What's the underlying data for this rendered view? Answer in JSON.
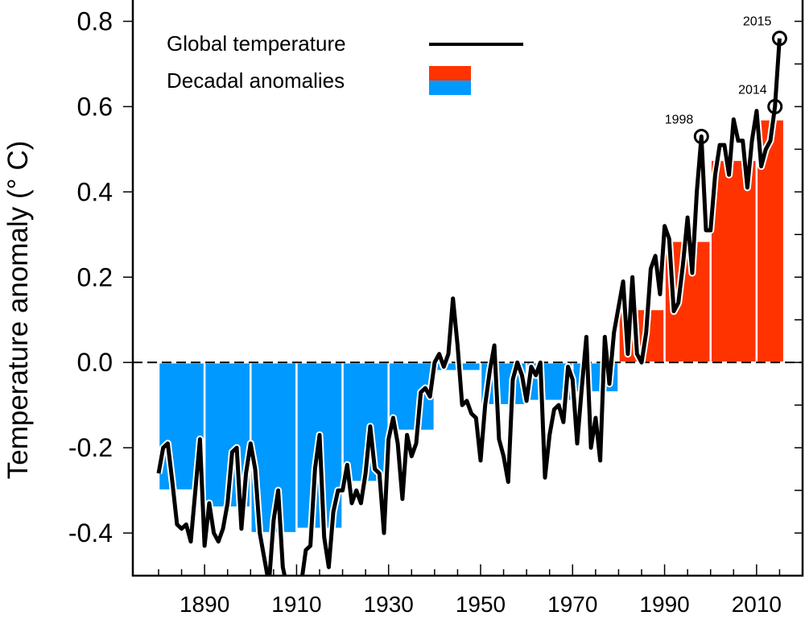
{
  "chart_data": {
    "type": "bar+line",
    "title": "",
    "xlabel": "",
    "ylabel": "Temperature anomaly (° C)",
    "xlim": [
      1874.4,
      2020
    ],
    "ylim": [
      -0.5,
      0.85
    ],
    "x_ticks": [
      1890,
      1910,
      1930,
      1950,
      1970,
      1990,
      2010
    ],
    "x_tick_labels": [
      "1890",
      "1910",
      "1930",
      "1950",
      "1970",
      "1990",
      "2010"
    ],
    "y_ticks": [
      -0.4,
      -0.2,
      0.0,
      0.2,
      0.4,
      0.6,
      0.8
    ],
    "y_tick_labels": [
      "-0.4",
      "-0.2",
      "0.0",
      "0.2",
      "0.4",
      "0.6",
      "0.8"
    ],
    "grid": false,
    "zero_line": "dashed",
    "legend": {
      "placement": "top-left",
      "entries": [
        {
          "label": "Global temperature",
          "type": "line",
          "color": "#000000"
        },
        {
          "label": "Decadal anomalies",
          "type": "box",
          "colors": [
            "#ff3300",
            "#0099ff"
          ]
        }
      ]
    },
    "colors": {
      "positive": "#ff3300",
      "negative": "#0099ff",
      "line": "#000000"
    },
    "decadal": {
      "decades": [
        1880,
        1890,
        1900,
        1910,
        1920,
        1930,
        1940,
        1950,
        1960,
        1970,
        1980,
        1990,
        2000,
        2010
      ],
      "values": [
        -0.3,
        -0.34,
        -0.4,
        -0.39,
        -0.28,
        -0.16,
        -0.02,
        -0.1,
        -0.09,
        -0.07,
        0.125,
        0.285,
        0.475,
        0.57
      ]
    },
    "annual": {
      "start_year": 1880,
      "values": [
        -0.26,
        -0.2,
        -0.19,
        -0.28,
        -0.38,
        -0.39,
        -0.38,
        -0.42,
        -0.3,
        -0.18,
        -0.43,
        -0.33,
        -0.4,
        -0.42,
        -0.39,
        -0.33,
        -0.21,
        -0.2,
        -0.39,
        -0.26,
        -0.19,
        -0.25,
        -0.4,
        -0.46,
        -0.52,
        -0.37,
        -0.3,
        -0.48,
        -0.53,
        -0.56,
        -0.55,
        -0.52,
        -0.44,
        -0.43,
        -0.25,
        -0.17,
        -0.41,
        -0.48,
        -0.35,
        -0.3,
        -0.3,
        -0.24,
        -0.33,
        -0.3,
        -0.33,
        -0.26,
        -0.15,
        -0.25,
        -0.26,
        -0.4,
        -0.18,
        -0.13,
        -0.19,
        -0.32,
        -0.17,
        -0.22,
        -0.19,
        -0.07,
        -0.06,
        -0.08,
        0.0,
        0.02,
        -0.01,
        0.02,
        0.15,
        0.04,
        -0.1,
        -0.09,
        -0.12,
        -0.13,
        -0.23,
        -0.1,
        -0.02,
        0.04,
        -0.18,
        -0.22,
        -0.28,
        -0.04,
        0.0,
        -0.03,
        -0.09,
        -0.01,
        -0.03,
        0.0,
        -0.27,
        -0.17,
        -0.11,
        -0.1,
        -0.14,
        -0.01,
        -0.04,
        -0.19,
        -0.06,
        0.06,
        -0.2,
        -0.13,
        -0.23,
        0.06,
        -0.05,
        0.07,
        0.13,
        0.19,
        0.02,
        0.2,
        0.02,
        0.0,
        0.07,
        0.22,
        0.25,
        0.16,
        0.32,
        0.29,
        0.12,
        0.14,
        0.23,
        0.34,
        0.21,
        0.4,
        0.53,
        0.31,
        0.31,
        0.44,
        0.51,
        0.51,
        0.44,
        0.57,
        0.52,
        0.52,
        0.41,
        0.52,
        0.59,
        0.46,
        0.5,
        0.52,
        0.6,
        0.76
      ]
    },
    "annotations": [
      {
        "label": "1998",
        "year": 1998,
        "value": 0.53
      },
      {
        "label": "2014",
        "year": 2014,
        "value": 0.6
      },
      {
        "label": "2015",
        "year": 2015,
        "value": 0.76
      }
    ]
  }
}
